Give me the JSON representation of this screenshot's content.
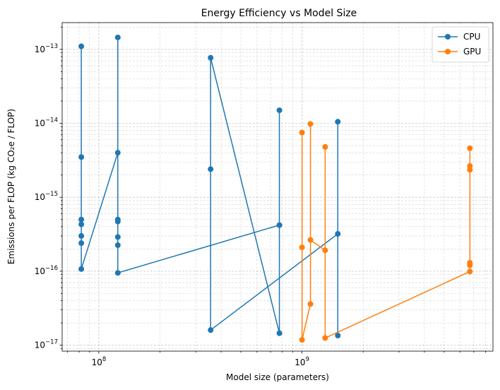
{
  "chart_data": {
    "type": "line",
    "title": "Energy Efficiency vs Model Size",
    "xlabel": "Model size (parameters)",
    "ylabel": "Emissions per FLOP (kg CO₂e / FLOP)",
    "xscale": "log",
    "yscale": "log",
    "xlim": [
      66000000.0,
      8700000000.0
    ],
    "ylim": [
      8.3e-18,
      2.3e-13
    ],
    "grid": "both (major and minor), dashed",
    "legend_position": "upper right",
    "x_tick_labels": [
      {
        "value": 100000000.0,
        "base": "10",
        "exp": "8"
      },
      {
        "value": 1000000000.0,
        "base": "10",
        "exp": "9"
      }
    ],
    "y_tick_labels": [
      {
        "value": 1e-17,
        "base": "10",
        "exp": "−17"
      },
      {
        "value": 1e-16,
        "base": "10",
        "exp": "−16"
      },
      {
        "value": 1e-15,
        "base": "10",
        "exp": "−15"
      },
      {
        "value": 1e-14,
        "base": "10",
        "exp": "−14"
      },
      {
        "value": 1e-13,
        "base": "10",
        "exp": "−13"
      }
    ],
    "series": [
      {
        "name": "CPU",
        "color": "#1f77b4",
        "points": [
          [
            82000000.0,
            1.1e-13
          ],
          [
            82000000.0,
            3.5e-15
          ],
          [
            82000000.0,
            5e-16
          ],
          [
            82000000.0,
            4.3e-16
          ],
          [
            82000000.0,
            3e-16
          ],
          [
            82000000.0,
            2.4e-16
          ],
          [
            82000000.0,
            1.07e-16
          ],
          [
            124000000.0,
            4e-15
          ],
          [
            124000000.0,
            1.45e-13
          ],
          [
            124000000.0,
            5e-16
          ],
          [
            124000000.0,
            4.7e-16
          ],
          [
            124000000.0,
            2.9e-16
          ],
          [
            124000000.0,
            2.25e-16
          ],
          [
            124000000.0,
            9.5e-17
          ],
          [
            774000000.0,
            4.2e-16
          ],
          [
            774000000.0,
            1.5e-14
          ],
          [
            774000000.0,
            1.45e-17
          ],
          [
            355000000.0,
            7.7e-14
          ],
          [
            355000000.0,
            2.4e-15
          ],
          [
            355000000.0,
            1.6e-17
          ],
          [
            1500000000.0,
            3.2e-16
          ],
          [
            1500000000.0,
            1.05e-14
          ],
          [
            1500000000.0,
            1.35e-17
          ]
        ]
      },
      {
        "name": "GPU",
        "color": "#ff7f0e",
        "points": [
          [
            1000000000.0,
            2.1e-16
          ],
          [
            1000000000.0,
            7.5e-15
          ],
          [
            1000000000.0,
            1.18e-17
          ],
          [
            1100000000.0,
            3.6e-17
          ],
          [
            1100000000.0,
            9.8e-15
          ],
          [
            1100000000.0,
            2.65e-16
          ],
          [
            1300000000.0,
            1.92e-16
          ],
          [
            1300000000.0,
            4.8e-15
          ],
          [
            1300000000.0,
            1.25e-17
          ],
          [
            6700000000.0,
            9.9e-17
          ],
          [
            6700000000.0,
            4.6e-15
          ],
          [
            6700000000.0,
            2.65e-15
          ],
          [
            6700000000.0,
            2.35e-15
          ],
          [
            6700000000.0,
            1.3e-16
          ],
          [
            6700000000.0,
            1.2e-16
          ]
        ]
      }
    ]
  }
}
